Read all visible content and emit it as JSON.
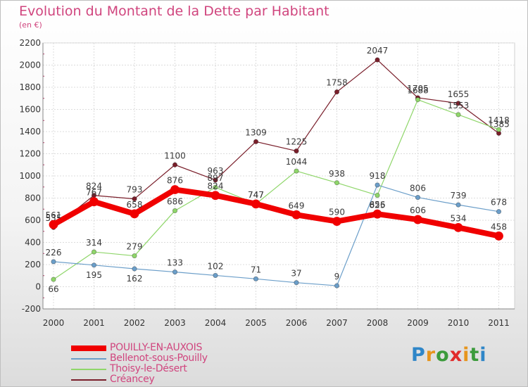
{
  "header": {
    "title": "Evolution du Montant de la Dette par Habitant",
    "subtitle": "(en €)"
  },
  "logo": {
    "letters": [
      "P",
      "r",
      "o",
      "x",
      "i",
      "t",
      "i"
    ],
    "colors": [
      "#2f86c8",
      "#e6951d",
      "#3c9b3c",
      "#e12b2b",
      "#e6951d",
      "#3c9b3c",
      "#2f86c8"
    ]
  },
  "chart_data": {
    "type": "line",
    "x": [
      "2000",
      "2001",
      "2002",
      "2003",
      "2004",
      "2005",
      "2006",
      "2007",
      "2008",
      "2009",
      "2010",
      "2011"
    ],
    "ylim": [
      -200,
      2200
    ],
    "yticks": [
      -200,
      0,
      200,
      400,
      600,
      800,
      1000,
      1200,
      1400,
      1600,
      1800,
      2000,
      2200
    ],
    "grid": true,
    "legend": "bottom-left",
    "series": [
      {
        "name": "Créancey",
        "color": "#7a1f2b",
        "values": [
          535,
          824,
          793,
          1100,
          963,
          1309,
          1225,
          1758,
          2047,
          1705,
          1655,
          1385
        ]
      },
      {
        "name": "Thoisy-le-Désert",
        "color": "#8fd66a",
        "values": [
          66,
          314,
          279,
          686,
          897,
          747,
          1044,
          938,
          825,
          1688,
          1553,
          1418
        ]
      },
      {
        "name": "Bellenot-sous-Pouilly",
        "color": "#6b9ec9",
        "values": [
          226,
          195,
          162,
          133,
          102,
          71,
          37,
          9,
          918,
          806,
          739,
          678
        ]
      },
      {
        "name": "POUILLY-EN-AUXOIS",
        "color": "#f00000",
        "values": [
          561,
          767,
          658,
          876,
          824,
          747,
          649,
          590,
          656,
          606,
          534,
          458
        ]
      }
    ]
  }
}
